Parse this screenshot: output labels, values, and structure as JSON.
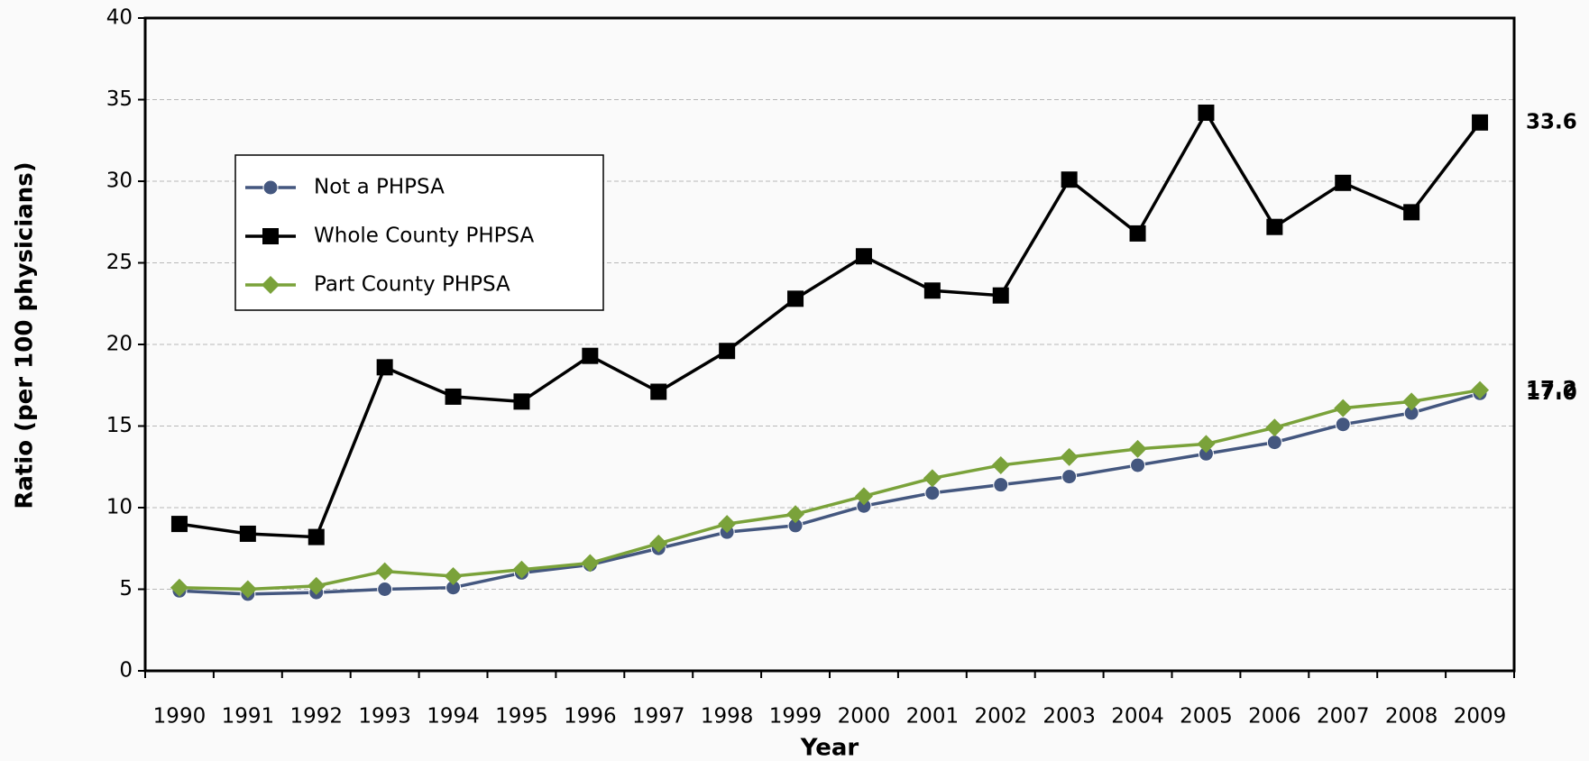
{
  "chart_data": {
    "type": "line",
    "x_label": "Year",
    "y_label": "Ratio (per 100 physicians)",
    "categories": [
      "1990",
      "1991",
      "1992",
      "1993",
      "1994",
      "1995",
      "1996",
      "1997",
      "1998",
      "1999",
      "2000",
      "2001",
      "2002",
      "2003",
      "2004",
      "2005",
      "2006",
      "2007",
      "2008",
      "2009"
    ],
    "series": [
      {
        "name": "Not a PHPSA",
        "color": "#44577f",
        "marker": "circle",
        "values": [
          4.9,
          4.7,
          4.8,
          5.0,
          5.1,
          6.0,
          6.5,
          7.5,
          8.5,
          8.9,
          10.1,
          10.9,
          11.4,
          11.9,
          12.6,
          13.3,
          14.0,
          15.1,
          15.8,
          17.0
        ],
        "value_labels": [
          null,
          null,
          null,
          null,
          null,
          null,
          null,
          null,
          null,
          null,
          null,
          null,
          null,
          null,
          null,
          null,
          null,
          null,
          null,
          "17.0"
        ]
      },
      {
        "name": "Whole County PHPSA",
        "color": "#000000",
        "marker": "square",
        "values": [
          9.0,
          8.4,
          8.2,
          18.6,
          16.8,
          16.5,
          19.3,
          17.1,
          19.6,
          22.8,
          25.4,
          23.3,
          23.0,
          30.1,
          26.8,
          34.2,
          27.2,
          29.9,
          28.1,
          33.6
        ],
        "value_labels": [
          null,
          null,
          null,
          null,
          null,
          null,
          null,
          null,
          null,
          null,
          null,
          null,
          null,
          null,
          null,
          null,
          null,
          null,
          null,
          "33.6"
        ]
      },
      {
        "name": "Part County PHPSA",
        "color": "#7aa23a",
        "marker": "diamond",
        "values": [
          5.1,
          5.0,
          5.2,
          6.1,
          5.8,
          6.2,
          6.6,
          7.8,
          9.0,
          9.6,
          10.7,
          11.8,
          12.6,
          13.1,
          13.6,
          13.9,
          14.9,
          16.1,
          16.5,
          17.2
        ],
        "value_labels": [
          null,
          null,
          null,
          null,
          null,
          null,
          null,
          null,
          null,
          null,
          null,
          null,
          null,
          null,
          null,
          null,
          null,
          null,
          null,
          "17.2"
        ]
      }
    ],
    "ylim": [
      0,
      40
    ],
    "yticks": [
      0,
      5,
      10,
      15,
      20,
      25,
      30,
      35,
      40
    ],
    "grid": true
  }
}
